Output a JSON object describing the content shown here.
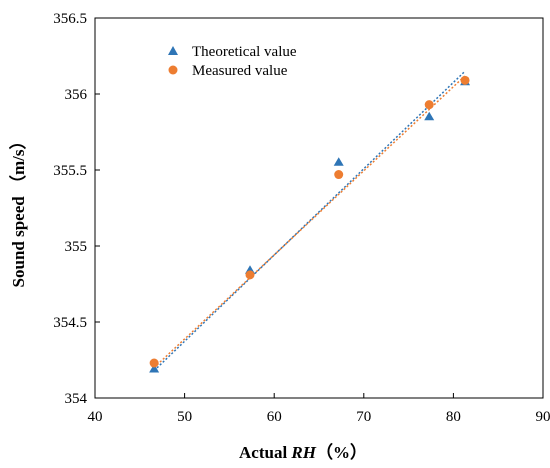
{
  "chart_data": {
    "type": "scatter",
    "xlabel": "Actual RH（%）",
    "xlabel_parts": {
      "prefix": "Actual ",
      "italic": "RH",
      "suffix": "（%）"
    },
    "ylabel": "Sound speed （m/s）",
    "xlim": [
      40,
      90
    ],
    "ylim": [
      354,
      356.5
    ],
    "x_ticks": [
      "40",
      "50",
      "60",
      "70",
      "80",
      "90"
    ],
    "y_ticks": [
      "354",
      "354.5",
      "355",
      "355.5",
      "356",
      "356.5"
    ],
    "grid": false,
    "legend_position": "top-left",
    "series": [
      {
        "name": "Theoretical value",
        "marker": "triangle",
        "color": "#2E75B6",
        "x": [
          46.6,
          57.3,
          67.2,
          77.3,
          81.3
        ],
        "y": [
          354.19,
          354.84,
          355.55,
          355.85,
          356.08
        ]
      },
      {
        "name": "Measured value",
        "marker": "circle",
        "color": "#ED7D31",
        "x": [
          46.6,
          57.3,
          67.2,
          77.3,
          81.3
        ],
        "y": [
          354.23,
          354.81,
          355.47,
          355.93,
          356.09
        ]
      }
    ],
    "trendlines": [
      {
        "series": "Theoretical value",
        "color": "#2E75B6",
        "x": [
          46.6,
          81.3
        ],
        "y": [
          354.18,
          356.15
        ]
      },
      {
        "series": "Measured value",
        "color": "#ED7D31",
        "x": [
          46.6,
          81.3
        ],
        "y": [
          354.2,
          356.12
        ]
      }
    ]
  }
}
